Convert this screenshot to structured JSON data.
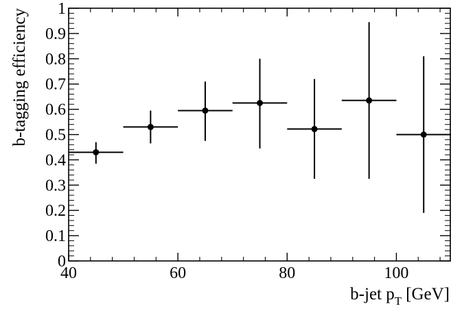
{
  "chart_data": {
    "type": "scatter",
    "title": "",
    "xlabel": "b-jet p",
    "xlabel_subscript": "T",
    "xlabel_unit": "[GeV]",
    "ylabel": "b-tagging efficiency",
    "xlim": [
      40,
      110
    ],
    "ylim": [
      0,
      1
    ],
    "x_major_ticks": [
      40,
      60,
      80,
      100
    ],
    "x_tick_labels": [
      "40",
      "60",
      "80",
      "100"
    ],
    "y_major_ticks": [
      0,
      0.1,
      0.2,
      0.3,
      0.4,
      0.5,
      0.6,
      0.7,
      0.8,
      0.9,
      1
    ],
    "y_tick_labels": [
      "0",
      "0.1",
      "0.2",
      "0.3",
      "0.4",
      "0.5",
      "0.6",
      "0.7",
      "0.8",
      "0.9",
      "1"
    ],
    "grid": false,
    "series": [
      {
        "points": [
          {
            "x": 45,
            "x_low": 40,
            "x_high": 50,
            "y": 0.43,
            "y_low": 0.385,
            "y_high": 0.47
          },
          {
            "x": 55,
            "x_low": 50,
            "x_high": 60,
            "y": 0.53,
            "y_low": 0.465,
            "y_high": 0.595
          },
          {
            "x": 65,
            "x_low": 60,
            "x_high": 70,
            "y": 0.595,
            "y_low": 0.475,
            "y_high": 0.71
          },
          {
            "x": 75,
            "x_low": 70,
            "x_high": 80,
            "y": 0.625,
            "y_low": 0.445,
            "y_high": 0.8
          },
          {
            "x": 85,
            "x_low": 80,
            "x_high": 90,
            "y": 0.522,
            "y_low": 0.325,
            "y_high": 0.72
          },
          {
            "x": 95,
            "x_low": 90,
            "x_high": 100,
            "y": 0.635,
            "y_low": 0.325,
            "y_high": 0.945
          },
          {
            "x": 105,
            "x_low": 100,
            "x_high": 110,
            "y": 0.5,
            "y_low": 0.19,
            "y_high": 0.81
          }
        ]
      }
    ],
    "marker_color": "#000000",
    "line_color": "#000000"
  }
}
